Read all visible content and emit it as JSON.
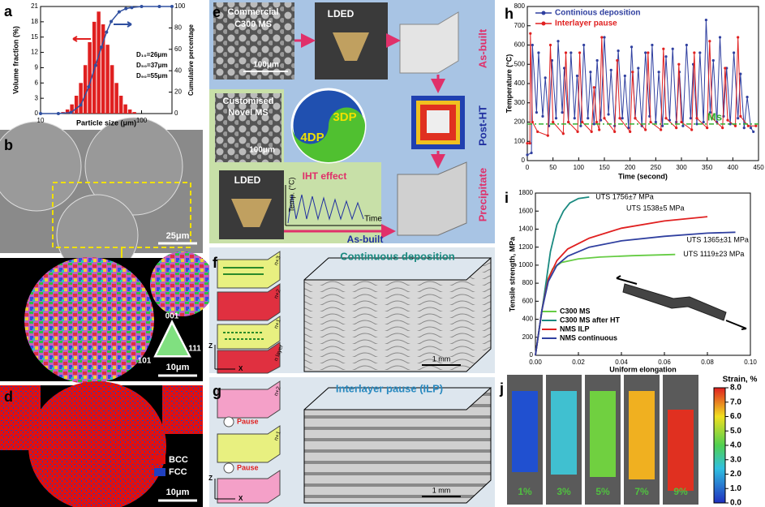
{
  "panels": {
    "a": {
      "label": "a",
      "chart": {
        "type": "histogram",
        "xscale": "log",
        "xlim": [
          10,
          200
        ],
        "xticks": [
          10,
          100
        ],
        "ylim": [
          0,
          21
        ],
        "yticks": [
          0,
          3,
          6,
          9,
          12,
          15,
          18,
          21
        ],
        "y2lim": [
          0,
          100
        ],
        "y2ticks": [
          0,
          20,
          40,
          60,
          80,
          100
        ],
        "xlabel": "Particle size (μm)",
        "ylabel": "Volume fraction (%)",
        "y2label": "Cumulative percentage",
        "color": "#e02020",
        "bins": [
          16,
          17.7,
          19.6,
          21.7,
          24,
          26.6,
          29.4,
          32.6,
          36.1,
          39.9,
          44.2,
          48.9,
          54.2,
          60,
          66.4,
          73.5,
          81.4,
          90
        ],
        "values": [
          0.3,
          0.8,
          1.8,
          3.5,
          6,
          9.5,
          14,
          18,
          20,
          17.5,
          13.5,
          9.5,
          6,
          3.5,
          1.8,
          0.8,
          0.3
        ],
        "cumulative": {
          "axis": "y2",
          "color": "#3050a0",
          "x": [
            10,
            15,
            20,
            25,
            30,
            35,
            40,
            45,
            50,
            60,
            70,
            80,
            100,
            150,
            200
          ],
          "values": [
            0,
            0,
            1,
            8,
            25,
            45,
            62,
            76,
            86,
            95,
            98,
            99,
            100,
            100,
            100
          ]
        },
        "annotations": [
          "D₁₀=26μm",
          "D₅₀=37μm",
          "D₉₀=55μm"
        ]
      }
    },
    "b": {
      "label": "b",
      "scale": "25μm"
    },
    "c": {
      "label": "c",
      "scale": "10μm",
      "ipf": [
        "001",
        "101",
        "111"
      ]
    },
    "d": {
      "label": "d",
      "scale": "10μm",
      "legend": [
        {
          "name": "BCC",
          "color": "#e01010"
        },
        {
          "name": "FCC",
          "color": "#2040c0"
        }
      ]
    },
    "e": {
      "label": "e",
      "powder1": [
        "Commercial",
        "C300 MS"
      ],
      "scale1": "100μm",
      "lded1": "LDED",
      "as_built1": "As-built",
      "post_ht": "Post-HT",
      "precipitate": "Precipitate",
      "powder2": [
        "Customised",
        "Novel MS"
      ],
      "scale2": "100μm",
      "lded2": "LDED",
      "dp3": "3DP",
      "dp4": "4DP",
      "iht": "IHT effect",
      "temp_axis": "Temp. (°C)",
      "time_axis": "Time",
      "as_built2": "As-built"
    },
    "f": {
      "label": "f",
      "title": "Continuous deposition",
      "layers": [
        "n+3",
        "n+2",
        "n+1",
        "n layer"
      ],
      "z": "Z",
      "x": "X",
      "scale": "1 mm"
    },
    "g": {
      "label": "g",
      "title": "Interlayer pause (ILP)",
      "pause": [
        "Pause",
        "Pause"
      ],
      "layers": [
        "n+2",
        "n+1"
      ],
      "z": "Z",
      "x": "X",
      "scale": "1 mm"
    },
    "h": {
      "label": "h",
      "chart": {
        "type": "line",
        "xlim": [
          0,
          450
        ],
        "xticks": [
          0,
          50,
          100,
          150,
          200,
          250,
          300,
          350,
          400,
          450
        ],
        "ylim": [
          0,
          800
        ],
        "yticks": [
          0,
          100,
          200,
          300,
          400,
          500,
          600,
          700,
          800
        ],
        "xlabel": "Time (second)",
        "ylabel": "Temperature (°C)",
        "ms_label": "Ms",
        "ms_line": 190,
        "ms_color": "#30b030",
        "series": [
          {
            "name": "Continious deposition",
            "color": "#3040a0",
            "x": [
              0,
              8,
              10,
              18,
              22,
              30,
              35,
              42,
              48,
              56,
              60,
              68,
              72,
              80,
              85,
              92,
              97,
              104,
              110,
              118,
              123,
              130,
              136,
              143,
              150,
              158,
              163,
              170,
              177,
              185,
              190,
              197,
              203,
              210,
              216,
              223,
              230,
              238,
              243,
              250,
              256,
              263,
              270,
              277,
              283,
              290,
              296,
              303,
              310,
              318,
              323,
              330,
              336,
              343,
              348,
              356,
              362,
              369,
              375,
              382,
              388,
              395,
              402,
              410,
              415,
              422,
              428,
              435,
              440
            ],
            "values": [
              30,
              40,
              600,
              250,
              560,
              230,
              430,
              180,
              520,
              220,
              620,
              250,
              480,
              200,
              560,
              220,
              440,
              180,
              600,
              220,
              460,
              190,
              520,
              210,
              640,
              240,
              470,
              180,
              570,
              220,
              440,
              170,
              590,
              220,
              480,
              180,
              560,
              230,
              600,
              200,
              460,
              180,
              540,
              210,
              580,
              200,
              460,
              180,
              600,
              220,
              500,
              190,
              560,
              200,
              730,
              250,
              520,
              200,
              640,
              230,
              480,
              190,
              560,
              220,
              450,
              170,
              330,
              170,
              150
            ]
          },
          {
            "name": "Interlayer pause",
            "color": "#e02020",
            "x": [
              0,
              5,
              6,
              10,
              20,
              40,
              45,
              50,
              70,
              75,
              80,
              98,
              102,
              107,
              125,
              130,
              135,
              140,
              145,
              150,
              170,
              175,
              180,
              200,
              205,
              210,
              230,
              235,
              240,
              260,
              265,
              270,
              290,
              295,
              300,
              320,
              325,
              330,
              350,
              355,
              360,
              380,
              385,
              390,
              405,
              410,
              415,
              430,
              445
            ],
            "values": [
              90,
              90,
              660,
              200,
              150,
              130,
              600,
              200,
              140,
              560,
              200,
              150,
              560,
              200,
              150,
              380,
              200,
              160,
              640,
              220,
              150,
              520,
              220,
              150,
              460,
              220,
              160,
              560,
              200,
              160,
              580,
              220,
              170,
              500,
              200,
              160,
              560,
              220,
              170,
              620,
              220,
              170,
              480,
              210,
              180,
              640,
              230,
              180,
              180
            ]
          }
        ]
      }
    },
    "i": {
      "label": "i",
      "chart": {
        "type": "line",
        "xlim": [
          0,
          0.1
        ],
        "xticks": [
          {
            "value": 0,
            "label": "0.00"
          },
          {
            "value": 0.02,
            "label": "0.02"
          },
          {
            "value": 0.04,
            "label": "0.04"
          },
          {
            "value": 0.06,
            "label": "0.06"
          },
          {
            "value": 0.08,
            "label": "0.08"
          },
          {
            "value": 0.1,
            "label": "0.10"
          }
        ],
        "ylim": [
          0,
          1800
        ],
        "yticks": [
          0,
          200,
          400,
          600,
          800,
          1000,
          1200,
          1400,
          1600,
          1800
        ],
        "xlabel": "Uniform elongation",
        "ylabel": "Tensile strength, MPa",
        "series": [
          {
            "name": "C300 MS",
            "color": "#66cc44",
            "annotation": "UTS 1119±23 MPa",
            "x": [
              0,
              0.003,
              0.005,
              0.008,
              0.012,
              0.02,
              0.03,
              0.045,
              0.065
            ],
            "values": [
              0,
              500,
              800,
              960,
              1030,
              1070,
              1090,
              1105,
              1119
            ]
          },
          {
            "name": "C300 MS after HT",
            "color": "#1a8a80",
            "annotation": "UTS 1756±7 MPa",
            "x": [
              0,
              0.004,
              0.007,
              0.01,
              0.013,
              0.016,
              0.02,
              0.025
            ],
            "values": [
              0,
              650,
              1150,
              1450,
              1600,
              1690,
              1740,
              1756
            ]
          },
          {
            "name": "NMS ILP",
            "color": "#e02020",
            "annotation": "UTS 1538±5 MPa",
            "x": [
              0,
              0.003,
              0.006,
              0.01,
              0.015,
              0.025,
              0.04,
              0.06,
              0.08
            ],
            "values": [
              0,
              500,
              850,
              1050,
              1180,
              1300,
              1410,
              1490,
              1538
            ]
          },
          {
            "name": "NMS continuous",
            "color": "#3040a0",
            "annotation": "UTS 1365±31 MPa",
            "x": [
              0,
              0.003,
              0.006,
              0.01,
              0.015,
              0.025,
              0.04,
              0.06,
              0.08,
              0.093
            ],
            "values": [
              0,
              500,
              820,
              1000,
              1100,
              1200,
              1270,
              1320,
              1355,
              1365
            ]
          }
        ]
      }
    },
    "j": {
      "label": "j",
      "strains": [
        "1%",
        "3%",
        "5%",
        "7%",
        "9%"
      ],
      "colorbar": {
        "title": "Strain, %",
        "lim": [
          0,
          8
        ],
        "ticks": [
          {
            "value": 0,
            "label": "0.0"
          },
          {
            "value": 1,
            "label": "1.0"
          },
          {
            "value": 2,
            "label": "2.0"
          },
          {
            "value": 3,
            "label": "3.0"
          },
          {
            "value": 4,
            "label": "4.0"
          },
          {
            "value": 5,
            "label": "5.0"
          },
          {
            "value": 6,
            "label": "6.0"
          },
          {
            "value": 7,
            "label": "7.0"
          },
          {
            "value": 8,
            "label": "8.0"
          }
        ]
      }
    }
  }
}
